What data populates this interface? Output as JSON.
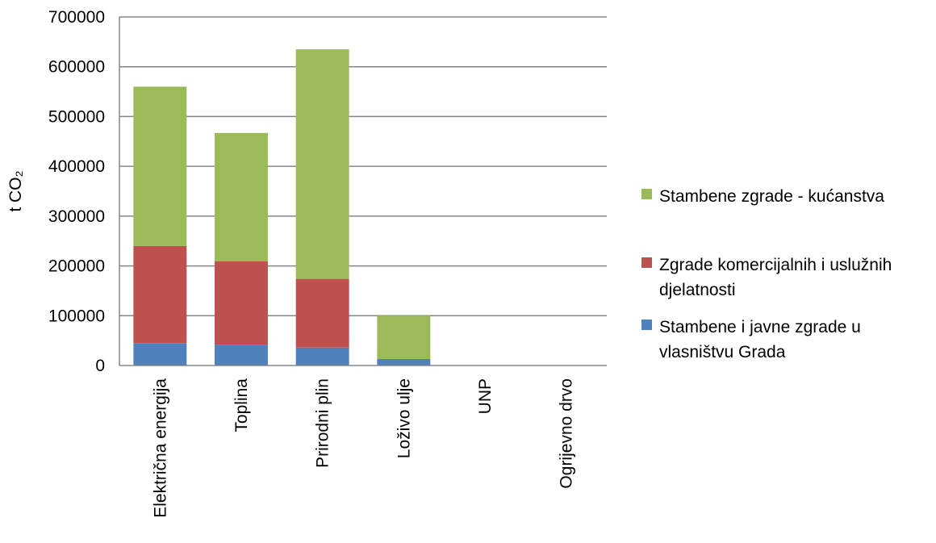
{
  "chart_data": {
    "type": "bar",
    "stacked": true,
    "categories": [
      "Električna energija",
      "Toplina",
      "Prirodni plin",
      "Loživo ulje",
      "UNP",
      "Ogrijevno drvo"
    ],
    "series": [
      {
        "name": "Stambene i javne zgrade u vlasništvu Grada",
        "color": "#4F81BD",
        "values": [
          45000,
          42000,
          36000,
          13000,
          0,
          0
        ]
      },
      {
        "name": "Zgrade komercijalnih i uslužnih djelatnosti",
        "color": "#C0504D",
        "values": [
          195000,
          167000,
          138000,
          0,
          0,
          0
        ]
      },
      {
        "name": "Stambene zgrade - kućanstva",
        "color": "#9BBB59",
        "values": [
          320000,
          258000,
          461000,
          87000,
          0,
          0
        ]
      }
    ],
    "yticks": [
      0,
      100000,
      200000,
      300000,
      400000,
      500000,
      600000,
      700000
    ],
    "ylim": [
      0,
      700000
    ],
    "ylabel": "t CO₂",
    "xlabel": "",
    "grid": true,
    "legend_position": "right"
  }
}
